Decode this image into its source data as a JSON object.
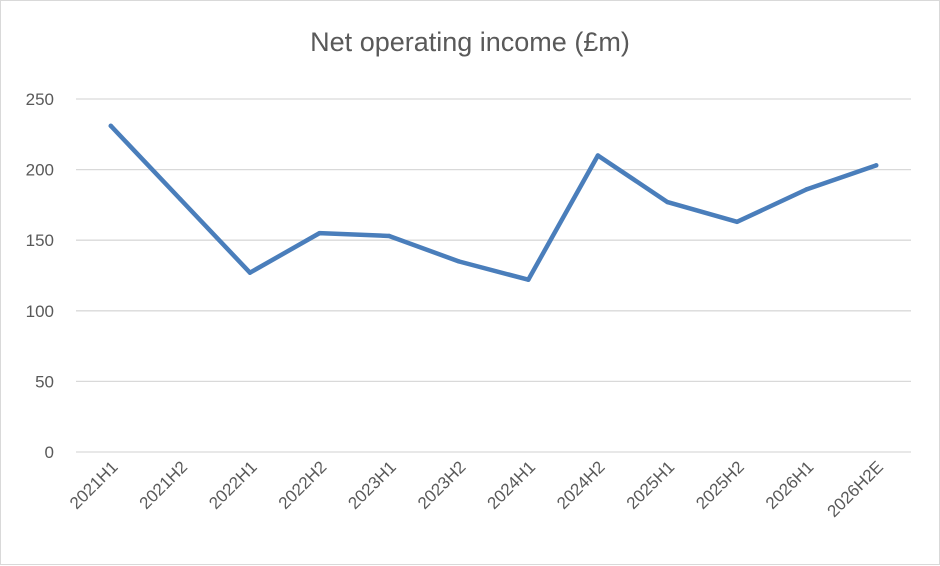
{
  "chart_data": {
    "type": "line",
    "title": "Net operating income (£m)",
    "categories": [
      "2021H1",
      "2021H2",
      "2022H1",
      "2022H2",
      "2023H1",
      "2023H2",
      "2024H1",
      "2024H2",
      "2025H1",
      "2025H2",
      "2026H1",
      "2026H2E"
    ],
    "series": [
      {
        "values": [
          231,
          179,
          127,
          155,
          153,
          135,
          122,
          210,
          177,
          163,
          186,
          203
        ],
        "color": "#4a7ebb"
      }
    ],
    "yticks": [
      0,
      50,
      100,
      150,
      200,
      250
    ],
    "ylim": [
      0,
      250
    ],
    "grid": true,
    "legend": "none"
  }
}
